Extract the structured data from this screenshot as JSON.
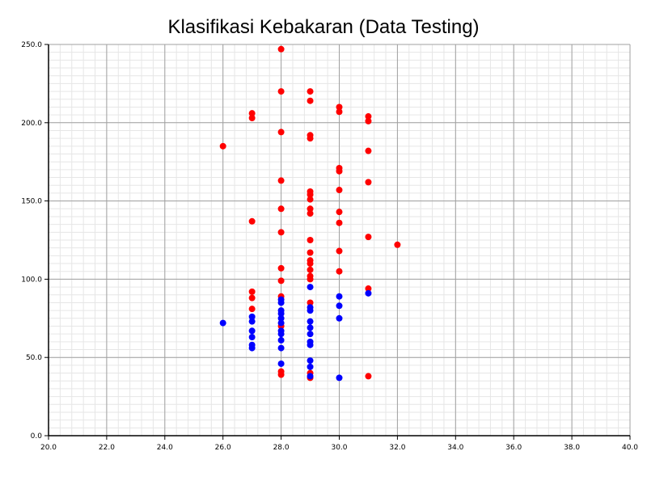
{
  "chart_data": {
    "type": "scatter",
    "title": "Klasifikasi Kebakaran (Data Testing)",
    "xlabel": "",
    "ylabel": "",
    "xlim": [
      20,
      40
    ],
    "ylim": [
      0,
      250
    ],
    "x_ticks": [
      "20.0",
      "22.0",
      "24.0",
      "26.0",
      "28.0",
      "30.0",
      "32.0",
      "34.0",
      "36.0",
      "38.0",
      "40.0"
    ],
    "y_ticks": [
      "0.0",
      "50.0",
      "100.0",
      "150.0",
      "200.0",
      "250.0"
    ],
    "grid": true,
    "series": [
      {
        "color": "#ff0000",
        "points": [
          [
            26,
            185
          ],
          [
            27,
            206
          ],
          [
            27,
            203
          ],
          [
            27,
            137
          ],
          [
            27,
            92
          ],
          [
            27,
            88
          ],
          [
            27,
            81
          ],
          [
            28,
            247
          ],
          [
            28,
            220
          ],
          [
            28,
            194
          ],
          [
            28,
            163
          ],
          [
            28,
            145
          ],
          [
            28,
            130
          ],
          [
            28,
            107
          ],
          [
            28,
            99
          ],
          [
            28,
            89
          ],
          [
            28,
            70
          ],
          [
            28,
            41
          ],
          [
            28,
            39
          ],
          [
            29,
            220
          ],
          [
            29,
            214
          ],
          [
            29,
            192
          ],
          [
            29,
            190
          ],
          [
            29,
            156
          ],
          [
            29,
            154
          ],
          [
            29,
            151
          ],
          [
            29,
            145
          ],
          [
            29,
            142
          ],
          [
            29,
            125
          ],
          [
            29,
            117
          ],
          [
            29,
            112
          ],
          [
            29,
            110
          ],
          [
            29,
            106
          ],
          [
            29,
            102
          ],
          [
            29,
            100
          ],
          [
            29,
            85
          ],
          [
            29,
            40
          ],
          [
            29,
            37
          ],
          [
            30,
            210
          ],
          [
            30,
            207
          ],
          [
            30,
            171
          ],
          [
            30,
            169
          ],
          [
            30,
            157
          ],
          [
            30,
            143
          ],
          [
            30,
            136
          ],
          [
            30,
            118
          ],
          [
            30,
            105
          ],
          [
            31,
            204
          ],
          [
            31,
            201
          ],
          [
            31,
            182
          ],
          [
            31,
            162
          ],
          [
            31,
            127
          ],
          [
            31,
            94
          ],
          [
            31,
            38
          ],
          [
            32,
            122
          ]
        ]
      },
      {
        "color": "#0000ff",
        "points": [
          [
            26,
            72
          ],
          [
            27,
            76
          ],
          [
            27,
            73
          ],
          [
            27,
            67
          ],
          [
            27,
            63
          ],
          [
            27,
            58
          ],
          [
            27,
            56
          ],
          [
            28,
            87
          ],
          [
            28,
            85
          ],
          [
            28,
            80
          ],
          [
            28,
            78
          ],
          [
            28,
            75
          ],
          [
            28,
            72
          ],
          [
            28,
            67
          ],
          [
            28,
            65
          ],
          [
            28,
            61
          ],
          [
            28,
            56
          ],
          [
            28,
            46
          ],
          [
            29,
            95
          ],
          [
            29,
            82
          ],
          [
            29,
            80
          ],
          [
            29,
            73
          ],
          [
            29,
            69
          ],
          [
            29,
            65
          ],
          [
            29,
            60
          ],
          [
            29,
            58
          ],
          [
            29,
            48
          ],
          [
            29,
            44
          ],
          [
            29,
            38
          ],
          [
            30,
            89
          ],
          [
            30,
            83
          ],
          [
            30,
            75
          ],
          [
            30,
            37
          ],
          [
            31,
            91
          ]
        ]
      }
    ]
  }
}
